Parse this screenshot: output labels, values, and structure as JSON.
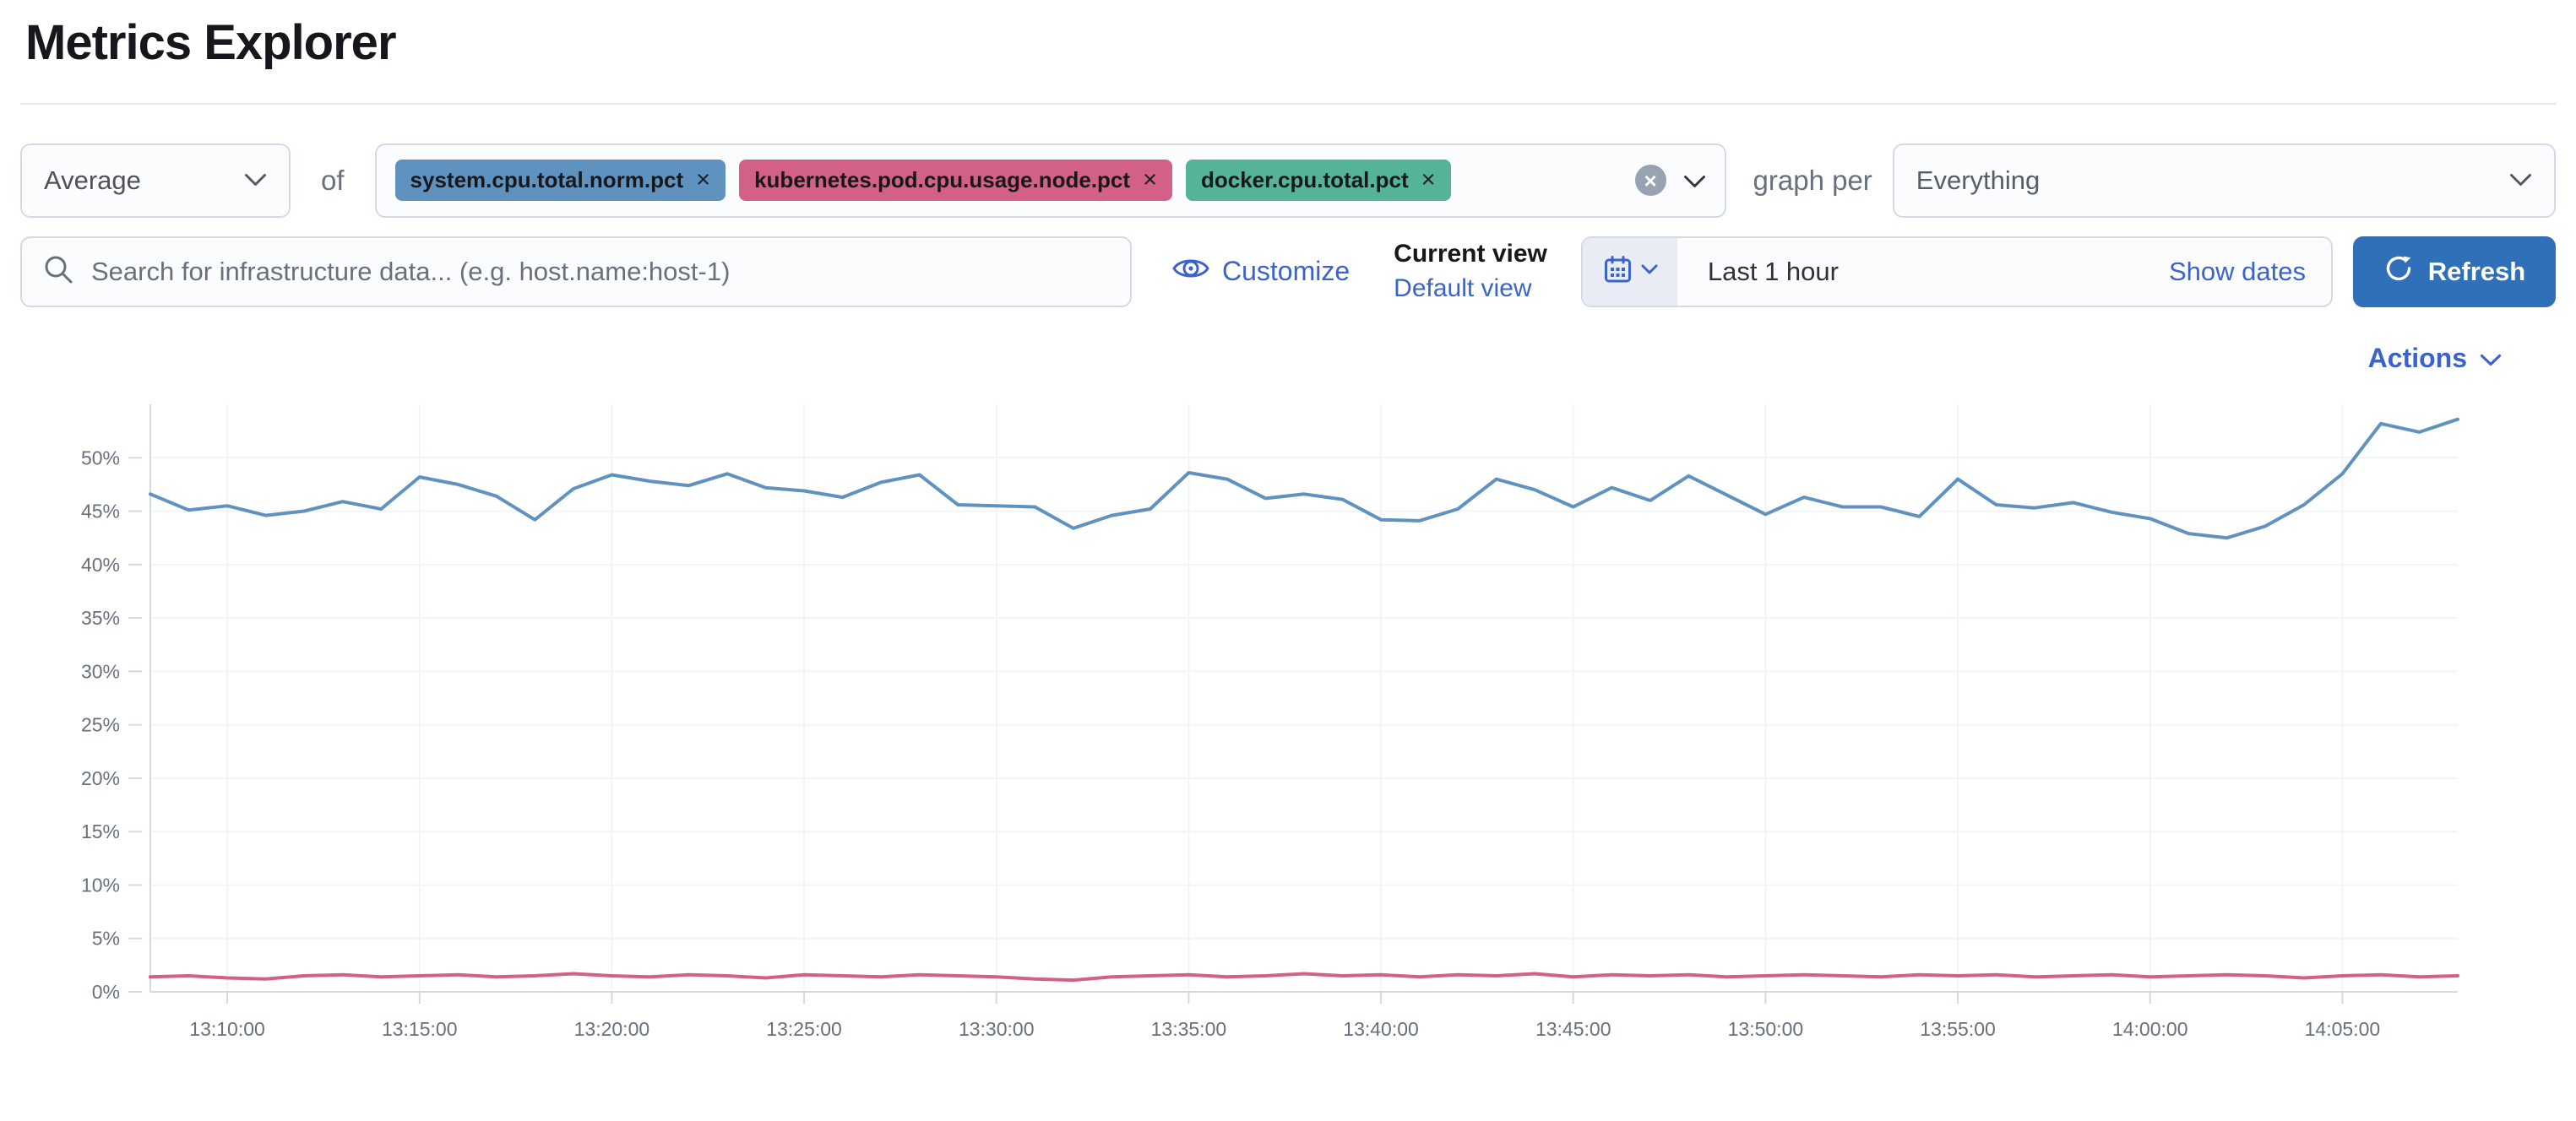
{
  "header": {
    "title": "Metrics Explorer"
  },
  "toolbar": {
    "aggregation": {
      "value": "Average"
    },
    "of_label": "of",
    "metrics": [
      {
        "label": "system.cpu.total.norm.pct",
        "color": "#6092C0"
      },
      {
        "label": "kubernetes.pod.cpu.usage.node.pct",
        "color": "#D36086"
      },
      {
        "label": "docker.cpu.total.pct",
        "color": "#54B399"
      }
    ],
    "graph_per_label": "graph per",
    "group_by": {
      "value": "Everything"
    }
  },
  "search": {
    "placeholder": "Search for infrastructure data... (e.g. host.name:host-1)"
  },
  "view_controls": {
    "customize_label": "Customize",
    "current_view_label": "Current view",
    "default_view_label": "Default view"
  },
  "datepicker": {
    "range_label": "Last 1 hour",
    "show_dates_label": "Show dates",
    "refresh_label": "Refresh"
  },
  "actions": {
    "label": "Actions"
  },
  "colors": {
    "link_blue": "#3c63c9",
    "refresh_button": "#2f70b8",
    "border": "#d3dae6",
    "axis_text": "#69707d"
  },
  "chart_data": {
    "type": "line",
    "title": "",
    "xlabel": "",
    "ylabel": "",
    "ylim": [
      0,
      55
    ],
    "grid": true,
    "legend": "none",
    "start_time": "13:08:00",
    "sample_interval_minutes": 1,
    "y_ticks": [
      {
        "value": 0,
        "label": "0%"
      },
      {
        "value": 5,
        "label": "5%"
      },
      {
        "value": 10,
        "label": "10%"
      },
      {
        "value": 15,
        "label": "15%"
      },
      {
        "value": 20,
        "label": "20%"
      },
      {
        "value": 25,
        "label": "25%"
      },
      {
        "value": 30,
        "label": "30%"
      },
      {
        "value": 35,
        "label": "35%"
      },
      {
        "value": 40,
        "label": "40%"
      },
      {
        "value": 45,
        "label": "45%"
      },
      {
        "value": 50,
        "label": "50%"
      }
    ],
    "x_ticks": [
      {
        "minute": 2,
        "label": "13:10:00"
      },
      {
        "minute": 7,
        "label": "13:15:00"
      },
      {
        "minute": 12,
        "label": "13:20:00"
      },
      {
        "minute": 17,
        "label": "13:25:00"
      },
      {
        "minute": 22,
        "label": "13:30:00"
      },
      {
        "minute": 27,
        "label": "13:35:00"
      },
      {
        "minute": 32,
        "label": "13:40:00"
      },
      {
        "minute": 37,
        "label": "13:45:00"
      },
      {
        "minute": 42,
        "label": "13:50:00"
      },
      {
        "minute": 47,
        "label": "13:55:00"
      },
      {
        "minute": 52,
        "label": "14:00:00"
      },
      {
        "minute": 57,
        "label": "14:05:00"
      }
    ],
    "series": [
      {
        "name": "system.cpu.total.norm.pct",
        "color": "#6092C0",
        "stroke_width": 4,
        "values": [
          46.6,
          45.1,
          45.5,
          44.6,
          45.0,
          45.9,
          45.2,
          48.2,
          47.5,
          46.4,
          44.2,
          47.1,
          48.4,
          47.8,
          47.4,
          48.5,
          47.2,
          46.9,
          46.3,
          47.7,
          48.4,
          45.6,
          45.5,
          45.4,
          43.4,
          44.6,
          45.2,
          48.6,
          48.0,
          46.2,
          46.6,
          46.1,
          44.2,
          44.1,
          45.2,
          48.0,
          47.0,
          45.4,
          47.2,
          46.0,
          48.3,
          46.5,
          44.7,
          46.3,
          45.4,
          45.4,
          44.5,
          48.0,
          45.6,
          45.3,
          45.8,
          44.9,
          44.3,
          42.9,
          42.5,
          43.6,
          45.6,
          48.5,
          53.2,
          52.4,
          53.6
        ]
      },
      {
        "name": "kubernetes.pod.cpu.usage.node.pct",
        "color": "#D36086",
        "stroke_width": 4,
        "values": [
          1.4,
          1.5,
          1.3,
          1.2,
          1.5,
          1.6,
          1.4,
          1.5,
          1.6,
          1.4,
          1.5,
          1.7,
          1.5,
          1.4,
          1.6,
          1.5,
          1.3,
          1.6,
          1.5,
          1.4,
          1.6,
          1.5,
          1.4,
          1.2,
          1.1,
          1.4,
          1.5,
          1.6,
          1.4,
          1.5,
          1.7,
          1.5,
          1.6,
          1.4,
          1.6,
          1.5,
          1.7,
          1.4,
          1.6,
          1.5,
          1.6,
          1.4,
          1.5,
          1.6,
          1.5,
          1.4,
          1.6,
          1.5,
          1.6,
          1.4,
          1.5,
          1.6,
          1.4,
          1.5,
          1.6,
          1.5,
          1.3,
          1.5,
          1.6,
          1.4,
          1.5
        ]
      }
    ]
  }
}
